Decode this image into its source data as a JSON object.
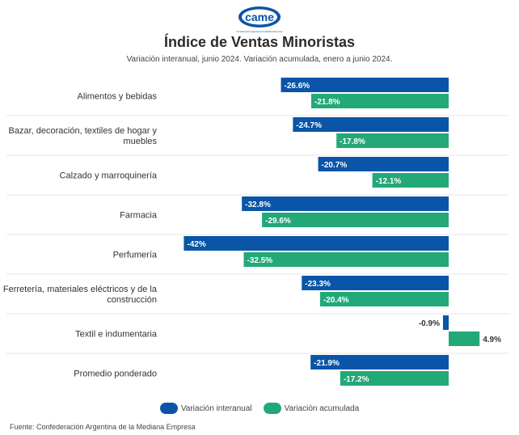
{
  "header": {
    "logo_text": "came",
    "logo_tagline": "Confederación Argentina de la Mediana Empresa",
    "title": "Índice de Ventas Minoristas",
    "subtitle": "Variación interanual, junio 2024. Variación acumulada, enero a junio 2024."
  },
  "colors": {
    "interanual": "#0a55a8",
    "acumulada": "#23a878",
    "gridline": "#e6e6e6"
  },
  "chart_data": {
    "type": "bar",
    "orientation": "horizontal",
    "categories": [
      [
        "Alimentos y bebidas"
      ],
      [
        "Bazar, decoración, textiles de hogar y",
        "muebles"
      ],
      [
        "Calzado y marroquinería"
      ],
      [
        "Farmacia"
      ],
      [
        "Perfumería"
      ],
      [
        "Ferretería, materiales eléctricos y de la",
        "construcción"
      ],
      [
        "Textil e indumentaria"
      ],
      [
        "Promedio ponderado"
      ]
    ],
    "series": [
      {
        "name": "Variación interanual",
        "values": [
          -26.6,
          -24.7,
          -20.7,
          -32.8,
          -42,
          -23.3,
          -0.9,
          -21.9
        ],
        "labels": [
          "-26.6%",
          "-24.7%",
          "-20.7%",
          "-32.8%",
          "-42%",
          "-23.3%",
          "-0.9%",
          "-21.9%"
        ]
      },
      {
        "name": "Variación acumulada",
        "values": [
          -21.8,
          -17.8,
          -12.1,
          -29.6,
          -32.5,
          -20.4,
          4.9,
          -17.2
        ],
        "labels": [
          "-21.8%",
          "-17.8%",
          "-12.1%",
          "-29.6%",
          "-32.5%",
          "-20.4%",
          "4.9%",
          "-17.2%"
        ]
      }
    ],
    "xlim": [
      -42,
      4.9
    ],
    "grid": "horizontal separators between categories",
    "legend_position": "bottom-center"
  },
  "source": "Fuente: Confederación Argentina de la Mediana Empresa"
}
